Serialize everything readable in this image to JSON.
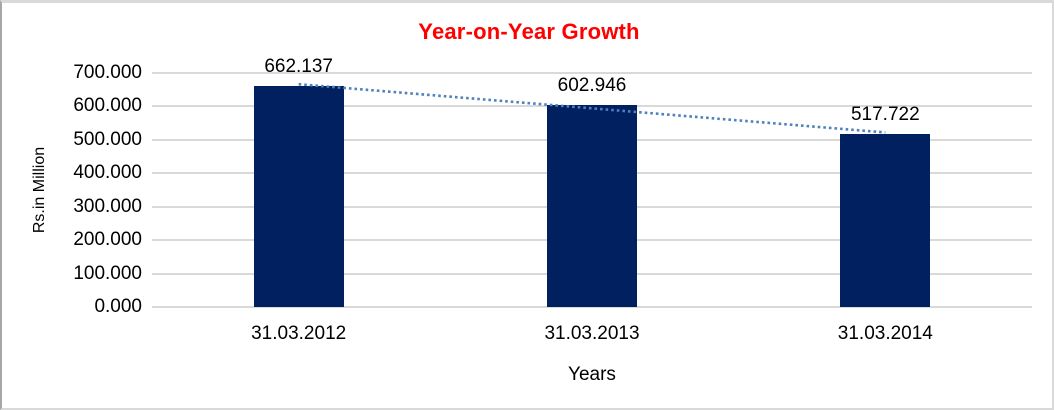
{
  "chart_data": {
    "type": "bar",
    "title": "Year-on-Year Growth",
    "title_color": "#FF0000",
    "categories": [
      "31.03.2012",
      "31.03.2013",
      "31.03.2014"
    ],
    "values": [
      662.137,
      602.946,
      517.722
    ],
    "data_labels": [
      "662.137",
      "602.946",
      "517.722"
    ],
    "xlabel": "Years",
    "ylabel": "Rs.in Million",
    "ylim": [
      0,
      700
    ],
    "ytick_step": 100,
    "ytick_labels": [
      "0.000",
      "100.000",
      "200.000",
      "300.000",
      "400.000",
      "500.000",
      "600.000",
      "700.000"
    ],
    "grid": true,
    "legend_position": "none",
    "bar_color": "#002060",
    "gridline_color": "#D9D9D9",
    "label_color": "#000000",
    "trendline": {
      "type": "linear",
      "style": "dotted",
      "color": "#4F81BD"
    }
  }
}
